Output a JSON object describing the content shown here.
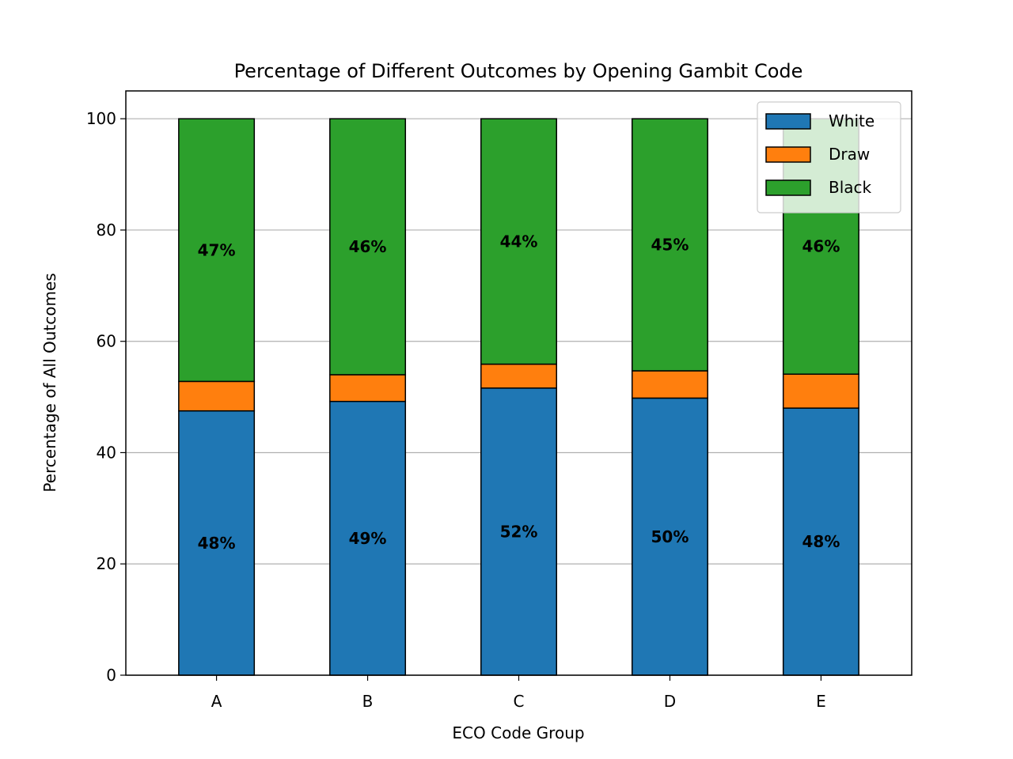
{
  "chart_data": {
    "type": "bar",
    "stacked": true,
    "title": "Percentage of Different Outcomes by Opening Gambit Code",
    "xlabel": "ECO Code Group",
    "ylabel": "Percentage of All Outcomes",
    "categories": [
      "A",
      "B",
      "C",
      "D",
      "E"
    ],
    "ylim": [
      0,
      105
    ],
    "yticks": [
      0,
      20,
      40,
      60,
      80,
      100
    ],
    "grid": "y",
    "legend_position": "top-right",
    "series": [
      {
        "name": "White",
        "color": "#1f77b4",
        "values": [
          47.5,
          49.2,
          51.6,
          49.8,
          48.0
        ],
        "labels": [
          "48%",
          "49%",
          "52%",
          "50%",
          "48%"
        ]
      },
      {
        "name": "Draw",
        "color": "#ff7f0e",
        "values": [
          5.3,
          4.8,
          4.3,
          4.9,
          6.1
        ],
        "labels": [
          "",
          "",
          "",
          "",
          ""
        ]
      },
      {
        "name": "Black",
        "color": "#2ca02c",
        "values": [
          47.2,
          46.0,
          44.1,
          45.3,
          45.9
        ],
        "labels": [
          "47%",
          "46%",
          "44%",
          "45%",
          "46%"
        ]
      }
    ]
  }
}
